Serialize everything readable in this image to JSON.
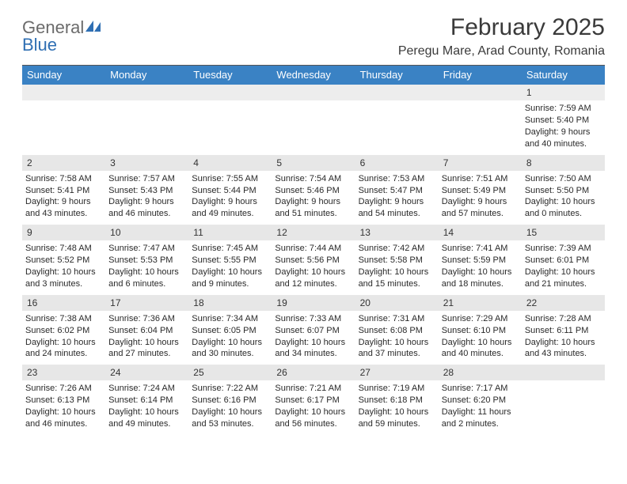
{
  "logo": {
    "text1": "General",
    "text2": "Blue",
    "text1_color": "#6b6b6b",
    "text2_color": "#2f6fb3",
    "icon_color": "#2f6fb3"
  },
  "header": {
    "month_title": "February 2025",
    "location": "Peregu Mare, Arad County, Romania"
  },
  "calendar": {
    "header_bg": "#3a82c4",
    "header_fg": "#ffffff",
    "daynum_bg": "#e7e7e7",
    "text_color": "#2a2a2a",
    "day_names": [
      "Sunday",
      "Monday",
      "Tuesday",
      "Wednesday",
      "Thursday",
      "Friday",
      "Saturday"
    ],
    "days": [
      {
        "n": "1",
        "sunrise": "7:59 AM",
        "sunset": "5:40 PM",
        "daylight": "9 hours and 40 minutes."
      },
      {
        "n": "2",
        "sunrise": "7:58 AM",
        "sunset": "5:41 PM",
        "daylight": "9 hours and 43 minutes."
      },
      {
        "n": "3",
        "sunrise": "7:57 AM",
        "sunset": "5:43 PM",
        "daylight": "9 hours and 46 minutes."
      },
      {
        "n": "4",
        "sunrise": "7:55 AM",
        "sunset": "5:44 PM",
        "daylight": "9 hours and 49 minutes."
      },
      {
        "n": "5",
        "sunrise": "7:54 AM",
        "sunset": "5:46 PM",
        "daylight": "9 hours and 51 minutes."
      },
      {
        "n": "6",
        "sunrise": "7:53 AM",
        "sunset": "5:47 PM",
        "daylight": "9 hours and 54 minutes."
      },
      {
        "n": "7",
        "sunrise": "7:51 AM",
        "sunset": "5:49 PM",
        "daylight": "9 hours and 57 minutes."
      },
      {
        "n": "8",
        "sunrise": "7:50 AM",
        "sunset": "5:50 PM",
        "daylight": "10 hours and 0 minutes."
      },
      {
        "n": "9",
        "sunrise": "7:48 AM",
        "sunset": "5:52 PM",
        "daylight": "10 hours and 3 minutes."
      },
      {
        "n": "10",
        "sunrise": "7:47 AM",
        "sunset": "5:53 PM",
        "daylight": "10 hours and 6 minutes."
      },
      {
        "n": "11",
        "sunrise": "7:45 AM",
        "sunset": "5:55 PM",
        "daylight": "10 hours and 9 minutes."
      },
      {
        "n": "12",
        "sunrise": "7:44 AM",
        "sunset": "5:56 PM",
        "daylight": "10 hours and 12 minutes."
      },
      {
        "n": "13",
        "sunrise": "7:42 AM",
        "sunset": "5:58 PM",
        "daylight": "10 hours and 15 minutes."
      },
      {
        "n": "14",
        "sunrise": "7:41 AM",
        "sunset": "5:59 PM",
        "daylight": "10 hours and 18 minutes."
      },
      {
        "n": "15",
        "sunrise": "7:39 AM",
        "sunset": "6:01 PM",
        "daylight": "10 hours and 21 minutes."
      },
      {
        "n": "16",
        "sunrise": "7:38 AM",
        "sunset": "6:02 PM",
        "daylight": "10 hours and 24 minutes."
      },
      {
        "n": "17",
        "sunrise": "7:36 AM",
        "sunset": "6:04 PM",
        "daylight": "10 hours and 27 minutes."
      },
      {
        "n": "18",
        "sunrise": "7:34 AM",
        "sunset": "6:05 PM",
        "daylight": "10 hours and 30 minutes."
      },
      {
        "n": "19",
        "sunrise": "7:33 AM",
        "sunset": "6:07 PM",
        "daylight": "10 hours and 34 minutes."
      },
      {
        "n": "20",
        "sunrise": "7:31 AM",
        "sunset": "6:08 PM",
        "daylight": "10 hours and 37 minutes."
      },
      {
        "n": "21",
        "sunrise": "7:29 AM",
        "sunset": "6:10 PM",
        "daylight": "10 hours and 40 minutes."
      },
      {
        "n": "22",
        "sunrise": "7:28 AM",
        "sunset": "6:11 PM",
        "daylight": "10 hours and 43 minutes."
      },
      {
        "n": "23",
        "sunrise": "7:26 AM",
        "sunset": "6:13 PM",
        "daylight": "10 hours and 46 minutes."
      },
      {
        "n": "24",
        "sunrise": "7:24 AM",
        "sunset": "6:14 PM",
        "daylight": "10 hours and 49 minutes."
      },
      {
        "n": "25",
        "sunrise": "7:22 AM",
        "sunset": "6:16 PM",
        "daylight": "10 hours and 53 minutes."
      },
      {
        "n": "26",
        "sunrise": "7:21 AM",
        "sunset": "6:17 PM",
        "daylight": "10 hours and 56 minutes."
      },
      {
        "n": "27",
        "sunrise": "7:19 AM",
        "sunset": "6:18 PM",
        "daylight": "10 hours and 59 minutes."
      },
      {
        "n": "28",
        "sunrise": "7:17 AM",
        "sunset": "6:20 PM",
        "daylight": "11 hours and 2 minutes."
      }
    ],
    "first_weekday_index": 6,
    "labels": {
      "sunrise": "Sunrise:",
      "sunset": "Sunset:",
      "daylight": "Daylight:"
    }
  }
}
